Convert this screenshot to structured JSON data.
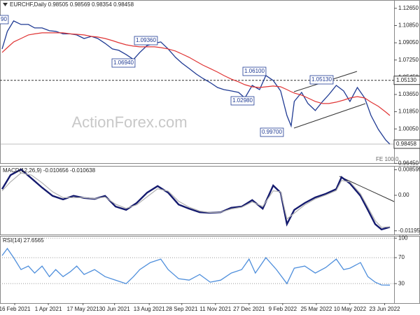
{
  "watermark": "ActionForex.com",
  "chart_data": [
    {
      "type": "line",
      "title": "EURCHF,Daily 0.98505 0.98569 0.98354 0.98458",
      "x": [
        2,
        7,
        13,
        20,
        27,
        33,
        40,
        47,
        53,
        60,
        67,
        73,
        80,
        87,
        93,
        100,
        107,
        113,
        120,
        127,
        133,
        140,
        147,
        153,
        160,
        167,
        173,
        180,
        187,
        193,
        200,
        207,
        213,
        220,
        227,
        233,
        240,
        247,
        253,
        260,
        267,
        273,
        277,
        280,
        287,
        293,
        300,
        307,
        313,
        320,
        327,
        333,
        340,
        347,
        353,
        360,
        367,
        371
      ],
      "series": [
        {
          "color": "#1f3a93",
          "values": [
            1.0841,
            1.1024,
            1.1133,
            1.1097,
            1.1097,
            1.106,
            1.106,
            1.1031,
            1.1024,
            1.0998,
            1.0998,
            1.0987,
            1.095,
            1.0972,
            1.095,
            1.0899,
            1.0841,
            1.0826,
            1.0782,
            1.0731,
            1.0804,
            1.0877,
            1.0899,
            1.0914,
            1.0841,
            1.0753,
            1.0694,
            1.0636,
            1.0577,
            1.0533,
            1.0489,
            1.0438,
            1.0416,
            1.0402,
            1.0387,
            1.0328,
            1.046,
            1.0416,
            1.0563,
            1.0511,
            1.0402,
            1.0145,
            1.0036,
            1.0292,
            1.0387,
            1.027,
            1.0197,
            1.0292,
            1.0365,
            1.046,
            1.0402,
            1.0292,
            1.0438,
            1.0328,
            1.0145,
            1.0,
            0.9889,
            0.98458
          ]
        },
        {
          "color": "#e03535",
          "values": [
            1.0804,
            1.0855,
            1.0914,
            1.095,
            1.0987,
            1.0998,
            1.1009,
            1.1009,
            1.1009,
            1.1009,
            1.0998,
            1.0994,
            1.0987,
            1.0972,
            1.0965,
            1.095,
            1.0928,
            1.0906,
            1.0884,
            1.087,
            1.0863,
            1.0863,
            1.0863,
            1.0855,
            1.0841,
            1.0819,
            1.0789,
            1.0753,
            1.0709,
            1.0672,
            1.0636,
            1.0599,
            1.0563,
            1.0526,
            1.0497,
            1.0467,
            1.0445,
            1.0438,
            1.0445,
            1.0453,
            1.0445,
            1.0416,
            1.0394,
            1.038,
            1.0358,
            1.0328,
            1.0292,
            1.027,
            1.027,
            1.0285,
            1.0306,
            1.0328,
            1.0343,
            1.0328,
            1.0285,
            1.0241,
            1.0182,
            1.0145
          ]
        }
      ],
      "xlim": [
        0,
        375
      ],
      "ylim": [
        0.9648,
        1.1352
      ],
      "yticks": [
        {
          "value": 1.1265,
          "label": "1.12650"
        },
        {
          "value": 1.1085,
          "label": "1.10850"
        },
        {
          "value": 1.0905,
          "label": "1.09050"
        },
        {
          "value": 1.0725,
          "label": "1.07250"
        },
        {
          "value": 1.0545,
          "label": "1.05450"
        },
        {
          "value": 1.0365,
          "label": "1.03650"
        },
        {
          "value": 1.0185,
          "label": "1.01850"
        },
        {
          "value": 1.0005,
          "label": "1.00050"
        },
        {
          "value": 0.9645,
          "label": "0.96450"
        }
      ],
      "hline": {
        "value": 1.0513,
        "label": "1.05130"
      },
      "last_label": "0.98458",
      "annotations": [
        "90",
        "1.09360",
        "1.06940",
        "1.06100",
        "1.02980",
        "1.05130",
        "0.99700",
        "FE 100.0"
      ]
    },
    {
      "type": "line",
      "title": "MACD(12,26,9) -0.010656 -0.010638",
      "x": [
        2,
        10,
        20,
        30,
        40,
        50,
        60,
        70,
        80,
        90,
        100,
        110,
        120,
        130,
        140,
        150,
        160,
        170,
        180,
        190,
        200,
        210,
        220,
        230,
        240,
        250,
        260,
        267,
        273,
        280,
        290,
        300,
        310,
        320,
        325,
        333,
        343,
        350,
        357,
        363,
        371
      ],
      "series": [
        {
          "color": "#141a6e",
          "values": [
            0.0021,
            0.0068,
            0.0087,
            0.0057,
            0.0026,
            -0.0002,
            -0.0014,
            -0.0002,
            -0.0009,
            -0.0012,
            -0.0002,
            -0.0038,
            -0.0049,
            -0.0026,
            0.0009,
            0.0031,
            0.0009,
            -0.0031,
            -0.0045,
            -0.0057,
            -0.0059,
            -0.0057,
            -0.0042,
            -0.0038,
            -0.0016,
            -0.0045,
            0.0033,
            0.0009,
            -0.0097,
            -0.0049,
            -0.0026,
            -0.0007,
            0.0005,
            0.0021,
            0.0061,
            0.004,
            -0.0002,
            -0.0049,
            -0.0097,
            -0.0115,
            -0.0107
          ]
        },
        {
          "color": "#b0b0b0",
          "values": [
            0.0015,
            0.0045,
            0.0075,
            0.0068,
            0.0042,
            0.0012,
            -0.0008,
            -0.0008,
            -0.0008,
            -0.0011,
            -0.0006,
            -0.003,
            -0.0044,
            -0.0032,
            -0.0005,
            0.0022,
            0.0014,
            -0.002,
            -0.004,
            -0.0053,
            -0.0058,
            -0.0057,
            -0.0046,
            -0.004,
            -0.0022,
            -0.0038,
            0.0015,
            0.0012,
            -0.008,
            -0.006,
            -0.0032,
            -0.0012,
            0.0001,
            0.0016,
            0.005,
            0.0045,
            0.0005,
            -0.004,
            -0.0085,
            -0.0108,
            -0.0106
          ]
        }
      ],
      "xlim": [
        0,
        375
      ],
      "ylim": [
        -0.0132,
        0.0099
      ],
      "yticks": [
        0.008599,
        {
          "value": 0,
          "label": "0.00"
        },
        -0.011958
      ]
    },
    {
      "type": "line",
      "title": "RSI(14) 27.6565",
      "x": [
        2,
        7,
        13,
        20,
        27,
        33,
        40,
        47,
        53,
        60,
        67,
        73,
        80,
        90,
        100,
        110,
        120,
        127,
        133,
        143,
        153,
        160,
        170,
        180,
        190,
        200,
        210,
        220,
        230,
        237,
        243,
        253,
        263,
        273,
        280,
        290,
        300,
        310,
        320,
        327,
        333,
        343,
        350,
        357,
        363,
        371
      ],
      "series": [
        {
          "color": "#4f8fdc",
          "values": [
            73.2,
            84.1,
            70.0,
            51.6,
            57.0,
            46.2,
            57.0,
            40.8,
            51.6,
            40.8,
            48.4,
            57.0,
            44.1,
            51.6,
            40.8,
            35.4,
            30.0,
            40.8,
            51.6,
            62.4,
            67.8,
            51.6,
            37.6,
            35.4,
            44.1,
            32.2,
            35.4,
            46.2,
            51.6,
            67.8,
            46.2,
            70.0,
            51.6,
            30.0,
            53.8,
            57.0,
            46.2,
            54.9,
            67.8,
            51.6,
            53.8,
            62.4,
            40.8,
            32.2,
            27.9,
            27.6565
          ]
        }
      ],
      "xlim": [
        0,
        375
      ],
      "ylim": [
        0,
        103.5
      ],
      "yticks": [
        100,
        70,
        30
      ],
      "grid": true,
      "xticks": [
        {
          "value": 14,
          "label": "16 Feb 2021"
        },
        {
          "value": 46,
          "label": "1 Apr 2021"
        },
        {
          "value": 79,
          "label": "17 May 2021"
        },
        {
          "value": 109,
          "label": "30 Jun 2021"
        },
        {
          "value": 142,
          "label": "13 Aug 2021"
        },
        {
          "value": 173,
          "label": "28 Sep 2021"
        },
        {
          "value": 205,
          "label": "11 Nov 2021"
        },
        {
          "value": 237,
          "label": "27 Dec 2021"
        },
        {
          "value": 269,
          "label": "9 Feb 2022"
        },
        {
          "value": 301,
          "label": "25 Mar 2022"
        },
        {
          "value": 333,
          "label": "10 May 2022"
        },
        {
          "value": 366,
          "label": "23 Jun 2022"
        }
      ]
    }
  ]
}
